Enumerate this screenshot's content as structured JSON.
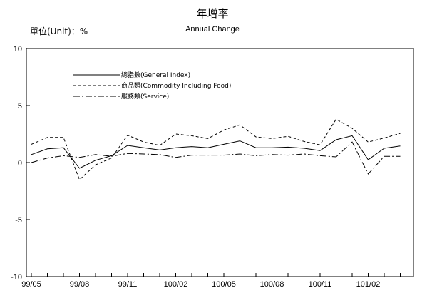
{
  "chart_data": {
    "type": "line",
    "title": "年增率",
    "subtitle": "Annual Change",
    "unit_label": "單位(Unit)：%",
    "x_tick_labels": [
      "99/05",
      "99/08",
      "99/11",
      "100/02",
      "100/05",
      "100/08",
      "100/11",
      "101/02"
    ],
    "x": [
      "99/05",
      "99/06",
      "99/07",
      "99/08",
      "99/09",
      "99/10",
      "99/11",
      "99/12",
      "100/01",
      "100/02",
      "100/03",
      "100/04",
      "100/05",
      "100/06",
      "100/07",
      "100/08",
      "100/09",
      "100/10",
      "100/11",
      "100/12",
      "101/01",
      "101/02",
      "101/03",
      "101/04"
    ],
    "ylim": [
      -10,
      10
    ],
    "y_ticks": [
      -10,
      -5,
      0,
      5,
      10
    ],
    "grid": false,
    "legend_position": "top-left",
    "series": [
      {
        "name": "總指數(General Index)",
        "line_style": "solid",
        "values": [
          0.7,
          1.2,
          1.3,
          -0.5,
          0.2,
          0.6,
          1.5,
          1.3,
          1.1,
          1.3,
          1.4,
          1.3,
          1.6,
          1.9,
          1.3,
          1.3,
          1.35,
          1.25,
          1.05,
          2.0,
          2.35,
          0.25,
          1.25,
          1.45
        ]
      },
      {
        "name": "商品類(Commodity Including Food)",
        "line_style": "dashed",
        "values": [
          1.6,
          2.2,
          2.2,
          -1.5,
          -0.2,
          0.4,
          2.4,
          1.8,
          1.5,
          2.5,
          2.35,
          2.1,
          2.85,
          3.3,
          2.25,
          2.1,
          2.3,
          1.85,
          1.55,
          3.8,
          3.0,
          1.8,
          2.15,
          2.55
        ]
      },
      {
        "name": "服務類(Service)",
        "line_style": "dashdot",
        "values": [
          0.0,
          0.4,
          0.6,
          0.45,
          0.7,
          0.55,
          0.8,
          0.75,
          0.7,
          0.45,
          0.65,
          0.65,
          0.65,
          0.75,
          0.6,
          0.7,
          0.65,
          0.75,
          0.6,
          0.5,
          1.8,
          -1.0,
          0.55,
          0.55
        ]
      }
    ]
  }
}
